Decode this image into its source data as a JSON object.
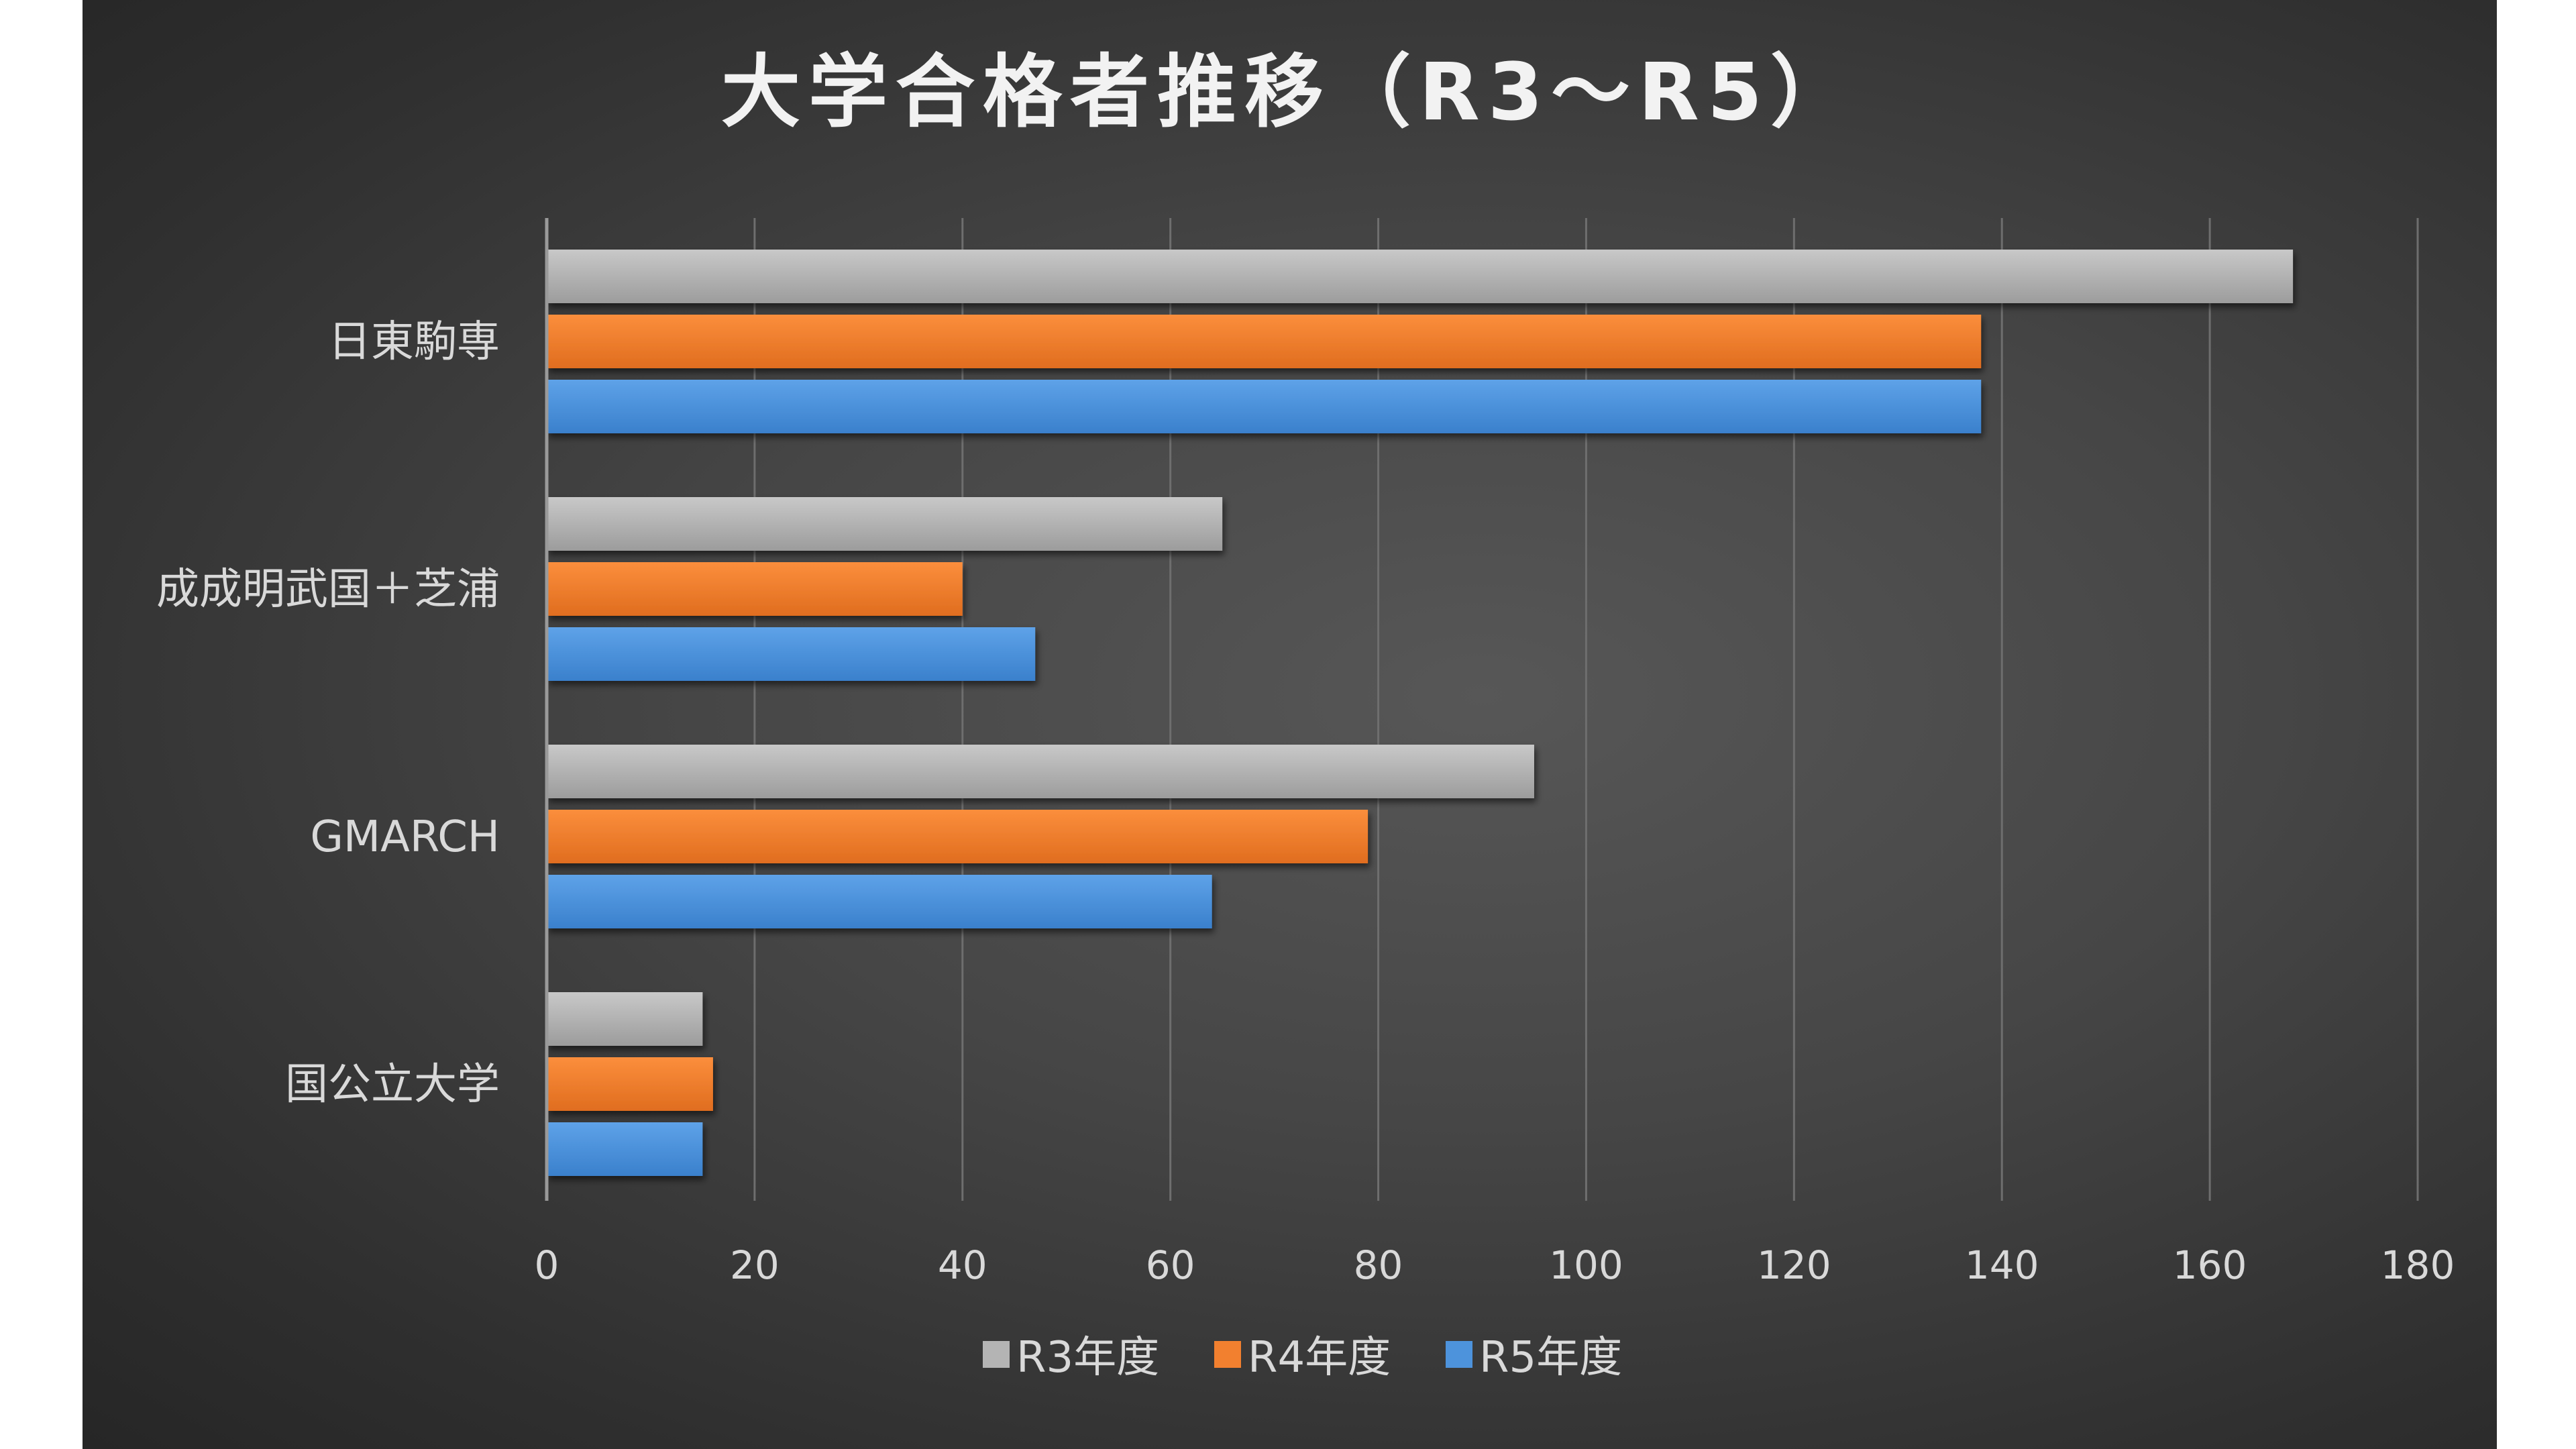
{
  "chart_data": {
    "type": "bar",
    "orientation": "horizontal",
    "title": "大学合格者推移（R3～R5）",
    "categories": [
      "日東駒専",
      "成成明武国＋芝浦",
      "GMARCH",
      "国公立大学"
    ],
    "series": [
      {
        "name": "R3年度",
        "color": "#b4b4b4",
        "values": [
          168,
          65,
          95,
          15
        ]
      },
      {
        "name": "R4年度",
        "color": "#f2802f",
        "values": [
          138,
          40,
          79,
          16
        ]
      },
      {
        "name": "R5年度",
        "color": "#4d93dc",
        "values": [
          138,
          47,
          64,
          15
        ]
      }
    ],
    "xlim": [
      0,
      180
    ],
    "xticks": [
      0,
      20,
      40,
      60,
      80,
      100,
      120,
      140,
      160,
      180
    ],
    "xlabel": "",
    "ylabel": "",
    "grid": "vertical",
    "legend": "bottom",
    "background": "#3f3f3f"
  }
}
